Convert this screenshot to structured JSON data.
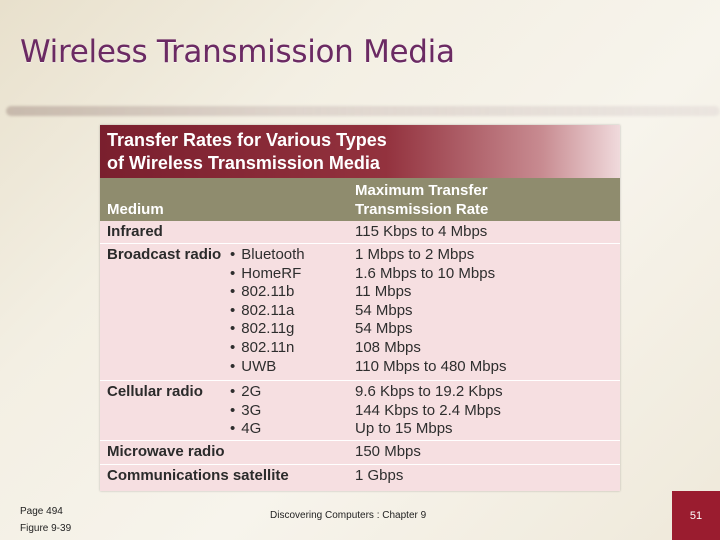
{
  "slide": {
    "title": "Wireless Transmission Media",
    "page_ref": "Page 494",
    "figure_ref": "Figure 9-39",
    "footer": "Discovering Computers : Chapter 9",
    "slide_number": "51"
  },
  "table": {
    "title_line1": "Transfer Rates for Various Types",
    "title_line2": "of Wireless Transmission Media",
    "col_medium": "Medium",
    "col_rate_line1": "Maximum Transfer",
    "col_rate_line2": "Transmission Rate",
    "rows": [
      {
        "medium": "Infrared",
        "types": [],
        "rates": [
          "115 Kbps to 4 Mbps"
        ]
      },
      {
        "medium": "Broadcast radio",
        "types": [
          "Bluetooth",
          "HomeRF",
          "802.11b",
          "802.11a",
          "802.11g",
          "802.11n",
          "UWB"
        ],
        "rates": [
          "1 Mbps to 2 Mbps",
          "1.6 Mbps to 10 Mbps",
          "11 Mbps",
          "54 Mbps",
          "54 Mbps",
          "108 Mbps",
          "110 Mbps to 480 Mbps"
        ]
      },
      {
        "medium": "Cellular radio",
        "types": [
          "2G",
          "3G",
          "4G"
        ],
        "rates": [
          "9.6 Kbps to 19.2 Kbps",
          "144 Kbps to 2.4 Mbps",
          "Up to 15 Mbps"
        ]
      },
      {
        "medium": "Microwave radio",
        "types": [],
        "rates": [
          "150 Mbps"
        ]
      },
      {
        "medium": "Communications satellite",
        "types": [],
        "rates": [
          "1 Gbps"
        ]
      }
    ]
  }
}
